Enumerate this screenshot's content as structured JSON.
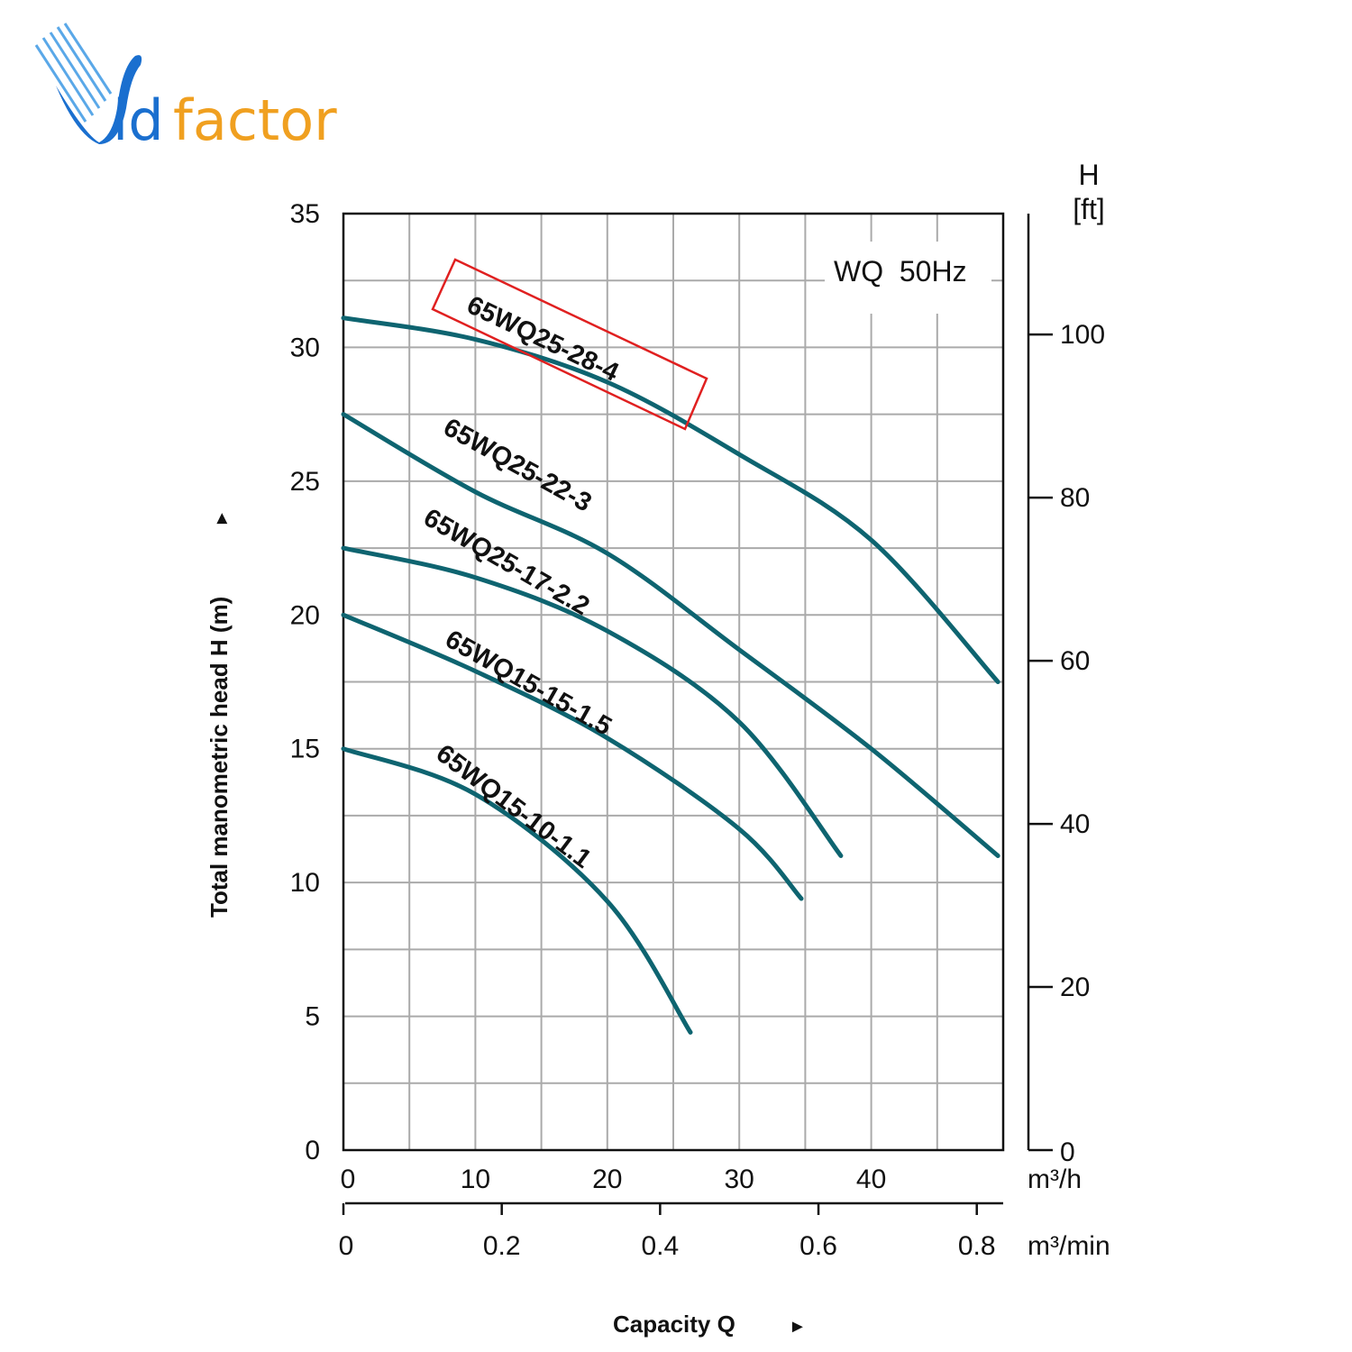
{
  "logo": {
    "text_part1": "id",
    "text_part2": "factor",
    "full": "Vidfactor",
    "blue": "#1a6fcf",
    "orange": "#f0a020"
  },
  "chart_data": {
    "type": "line",
    "title": "WQ  50Hz",
    "xlabel": "Capacity Q",
    "xlabel_arrow": "►",
    "ylabel": "Total manometric head H (m)",
    "ylabel_arrow": "►",
    "x_unit": "m³/h",
    "x2_unit": "m³/min",
    "y2_label_line1": "H",
    "y2_label_line2": "[ft]",
    "xlim": [
      0,
      50
    ],
    "ylim": [
      0,
      35
    ],
    "x_ticks": [
      0,
      10,
      20,
      30,
      40
    ],
    "y_ticks": [
      0,
      5,
      10,
      15,
      20,
      25,
      30,
      35
    ],
    "x2_ticks": [
      0,
      0.2,
      0.4,
      0.6,
      0.8
    ],
    "y2_ticks_ft": [
      0,
      20,
      40,
      60,
      80,
      100
    ],
    "grid": true,
    "grid_x_step": 5,
    "grid_y_step": 2.5,
    "curve_color": "#0e6470",
    "highlight_color": "#e02020",
    "highlighted_series": "65WQ25-28-4",
    "series": [
      {
        "name": "65WQ25-28-4",
        "x": [
          0,
          10,
          20,
          30,
          40,
          49.6
        ],
        "y": [
          31.1,
          30.3,
          28.7,
          26.0,
          22.8,
          17.5
        ]
      },
      {
        "name": "65WQ25-22-3",
        "x": [
          0,
          10,
          20,
          30,
          40,
          49.6
        ],
        "y": [
          27.5,
          24.6,
          22.3,
          18.7,
          15.0,
          11.0
        ]
      },
      {
        "name": "65WQ25-17-2.2",
        "x": [
          0,
          10,
          20,
          30,
          37.7
        ],
        "y": [
          22.5,
          21.4,
          19.4,
          16.0,
          11.0
        ]
      },
      {
        "name": "65WQ15-15-1.5",
        "x": [
          0,
          10,
          20,
          30,
          34.7
        ],
        "y": [
          20.0,
          17.9,
          15.4,
          12.0,
          9.4
        ]
      },
      {
        "name": "65WQ15-10-1.1",
        "x": [
          0,
          10,
          20,
          26.3
        ],
        "y": [
          15.0,
          13.3,
          9.3,
          4.4
        ]
      }
    ]
  }
}
